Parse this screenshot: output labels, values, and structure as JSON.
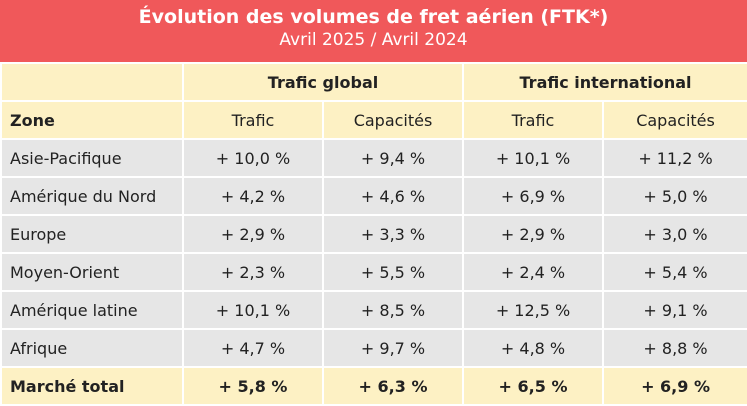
{
  "header": {
    "title": "Évolution des volumes de fret aérien (FTK*)",
    "subtitle": "Avril 2025 / Avril 2024"
  },
  "table": {
    "group_headers": [
      "Trafic global",
      "Trafic international"
    ],
    "zone_header": "Zone",
    "columns": [
      "Trafic",
      "Capacités",
      "Trafic",
      "Capacités"
    ],
    "rows": [
      [
        "Asie-Pacifique",
        "+ 10,0 %",
        "+ 9,4 %",
        "+ 10,1 %",
        "+ 11,2 %"
      ],
      [
        "Amérique du Nord",
        "+ 4,2 %",
        "+ 4,6 %",
        "+ 6,9 %",
        "+ 5,0 %"
      ],
      [
        "Europe",
        "+ 2,9 %",
        "+ 3,3 %",
        "+ 2,9 %",
        "+ 3,0 %"
      ],
      [
        "Moyen-Orient",
        "+ 2,3 %",
        "+ 5,5 %",
        "+ 2,4 %",
        "+ 5,4 %"
      ],
      [
        "Amérique latine",
        "+ 10,1 %",
        "+ 8,5 %",
        "+ 12,5 %",
        "+ 9,1 %"
      ],
      [
        "Afrique",
        "+ 4,7 %",
        "+ 9,7 %",
        "+ 4,8 %",
        "+ 8,8 %"
      ]
    ],
    "total": [
      "Marché total",
      "+ 5,8 %",
      "+ 6,3 %",
      "+ 6,5 %",
      "+ 6,9 %"
    ]
  }
}
